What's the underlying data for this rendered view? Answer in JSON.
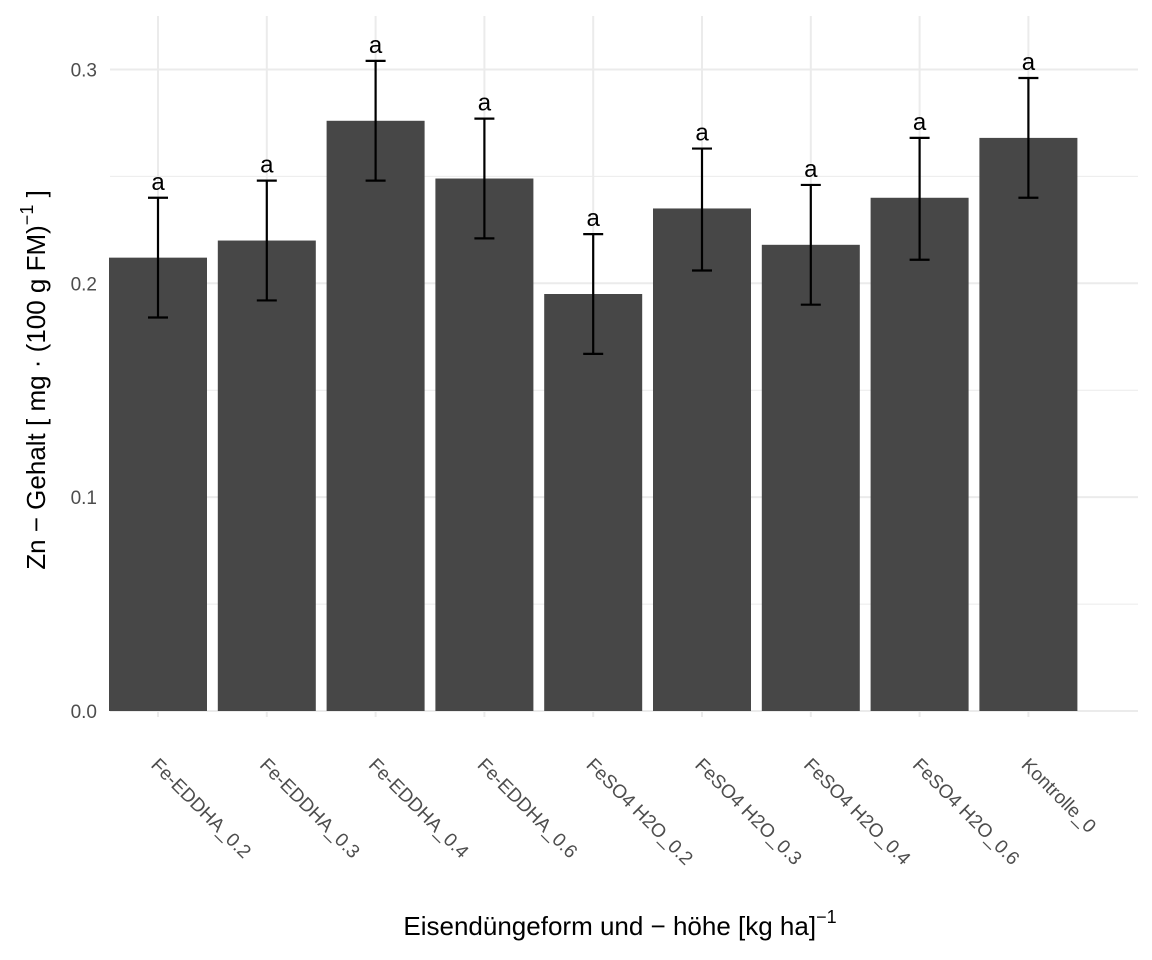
{
  "chart_data": {
    "type": "bar",
    "categories": [
      "Fe-EDDHA_0.2",
      "Fe-EDDHA_0.3",
      "Fe-EDDHA_0.4",
      "Fe-EDDHA_0.6",
      "FeSO4 H2O_0.2",
      "FeSO4 H2O_0.3",
      "FeSO4 H2O_0.4",
      "FeSO4 H2O_0.6",
      "Kontrolle_0"
    ],
    "values": [
      0.212,
      0.22,
      0.276,
      0.249,
      0.195,
      0.235,
      0.218,
      0.24,
      0.268
    ],
    "error_low": [
      0.184,
      0.192,
      0.248,
      0.221,
      0.167,
      0.206,
      0.19,
      0.211,
      0.24
    ],
    "error_high": [
      0.24,
      0.248,
      0.304,
      0.277,
      0.223,
      0.263,
      0.246,
      0.268,
      0.296
    ],
    "significance_labels": [
      "a",
      "a",
      "a",
      "a",
      "a",
      "a",
      "a",
      "a",
      "a"
    ],
    "ylim": [
      0,
      0.325
    ],
    "yticks": [
      0.0,
      0.1,
      0.2,
      0.3
    ],
    "ytick_labels": [
      "0.0",
      "0.1",
      "0.2",
      "0.3"
    ],
    "xlabel": {
      "main": "Eisendüngeform und − höhe [kg ha]",
      "superscript": "−1"
    },
    "ylabel": {
      "part1": "Zn − Gehalt [ mg · (100 g FM)",
      "superscript": "−1",
      "part2": " ]"
    },
    "grid": true,
    "bar_color": "#474747",
    "grid_color": "#ebebeb",
    "errorbar_color": "#000000"
  }
}
